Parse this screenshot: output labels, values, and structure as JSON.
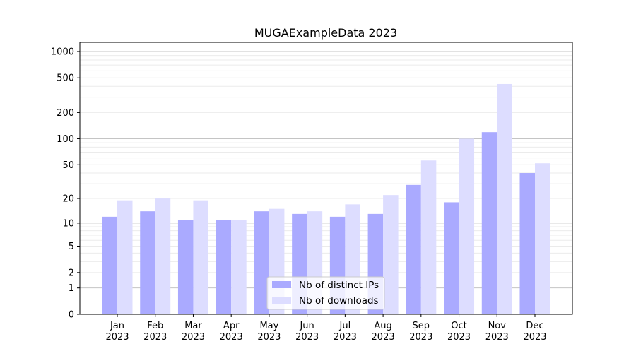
{
  "chart_data": {
    "type": "bar",
    "title": "MUGAExampleData 2023",
    "xlabel": "",
    "ylabel": "",
    "yscale": "log10(y+1)",
    "ylim": [
      0,
      1272
    ],
    "yticks": [
      0,
      1,
      2,
      5,
      10,
      20,
      50,
      100,
      200,
      500,
      1000
    ],
    "grid": true,
    "legend_position": "bottom-center",
    "categories": [
      "Jan\n2023",
      "Feb\n2023",
      "Mar\n2023",
      "Apr\n2023",
      "May\n2023",
      "Jun\n2023",
      "Jul\n2023",
      "Aug\n2023",
      "Sep\n2023",
      "Oct\n2023",
      "Nov\n2023",
      "Dec\n2023"
    ],
    "series": [
      {
        "name": "Nb of distinct IPs",
        "color": "#aaaaff",
        "values": [
          12,
          14,
          11,
          11,
          14,
          13,
          12,
          13,
          29,
          18,
          119,
          40
        ]
      },
      {
        "name": "Nb of downloads",
        "color": "#ddddff",
        "values": [
          19,
          20,
          19,
          11,
          15,
          14,
          17,
          22,
          56,
          100,
          425,
          52
        ]
      }
    ]
  }
}
